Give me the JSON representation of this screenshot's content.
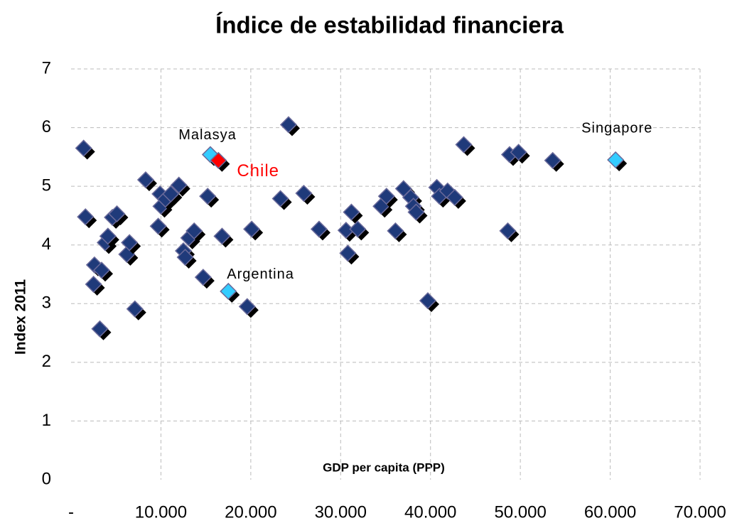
{
  "chart_data": {
    "type": "scatter",
    "title": "Índice de estabilidad financiera",
    "x_label": "GDP  per capita (PPP)",
    "y_label": "Index 2011",
    "xlim": [
      0,
      70000
    ],
    "ylim": [
      0,
      7
    ],
    "xticks": [
      {
        "value": 0,
        "label": "-"
      },
      {
        "value": 10000,
        "label": "10.000"
      },
      {
        "value": 20000,
        "label": "20.000"
      },
      {
        "value": 30000,
        "label": "30.000"
      },
      {
        "value": 40000,
        "label": "40.000"
      },
      {
        "value": 50000,
        "label": "50.000"
      },
      {
        "value": 60000,
        "label": "60.000"
      },
      {
        "value": 70000,
        "label": "70.000"
      }
    ],
    "yticks": [
      0,
      1,
      2,
      3,
      4,
      5,
      6,
      7
    ],
    "grid": true,
    "series": [
      {
        "color": "#1f3a7a",
        "x": [
          1400,
          1600,
          2600,
          2500,
          3200,
          3400,
          3800,
          4100,
          4600,
          5100,
          6200,
          6500,
          7100,
          8300,
          9700,
          9900,
          10000,
          10500,
          11100,
          12000,
          12500,
          12700,
          13100,
          13700,
          14700,
          15200,
          16800,
          19600,
          20100,
          23300,
          24200,
          25900,
          27600,
          30600,
          30800,
          31200,
          31900,
          34500,
          35100,
          36100,
          37000,
          37800,
          38100,
          38400,
          39700,
          40700,
          41000,
          41900,
          42700,
          43700,
          48600,
          48800,
          49800,
          53600
        ],
        "values": [
          5.65,
          4.48,
          3.66,
          3.33,
          2.57,
          3.57,
          4.04,
          4.15,
          4.47,
          4.53,
          3.84,
          4.04,
          2.91,
          5.11,
          4.32,
          4.87,
          4.66,
          4.78,
          4.87,
          5.02,
          3.9,
          3.79,
          4.12,
          4.24,
          3.45,
          4.83,
          4.15,
          2.95,
          4.27,
          4.79,
          6.05,
          4.88,
          4.27,
          4.25,
          3.86,
          4.56,
          4.27,
          4.66,
          4.83,
          4.24,
          4.96,
          4.81,
          4.66,
          4.56,
          3.05,
          4.98,
          4.83,
          4.92,
          4.81,
          5.71,
          4.24,
          5.54,
          5.58,
          5.44
        ]
      },
      {
        "color": "#33ccff",
        "label_color": "#000000",
        "x": [
          15500,
          17500,
          60600
        ],
        "values": [
          5.54,
          3.21,
          5.45
        ],
        "labels": [
          "Malasya",
          "Argentina",
          "Singapore"
        ]
      },
      {
        "color": "#ff0000",
        "label_color": "#ff0000",
        "x": [
          16400
        ],
        "values": [
          5.44
        ],
        "labels": [
          "Chile"
        ]
      }
    ]
  }
}
